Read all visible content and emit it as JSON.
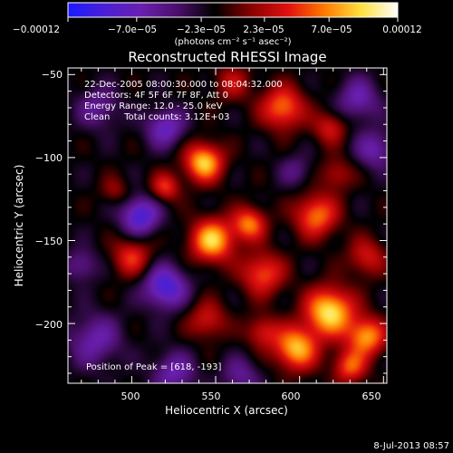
{
  "chart_data": {
    "type": "heatmap",
    "title": "Reconstructed RHESSI Image",
    "xlabel": "Heliocentric X (arcsec)",
    "ylabel": "Heliocentric Y (arcsec)",
    "xlim": [
      462,
      652
    ],
    "ylim": [
      -236,
      -46
    ],
    "x_ticks": [
      500,
      550,
      600,
      650
    ],
    "y_ticks": [
      -50,
      -100,
      -150,
      -200
    ],
    "x_tick_labels": [
      "500",
      "550",
      "600",
      "650"
    ],
    "y_tick_labels": [
      "−50",
      "−100",
      "−150",
      "−200"
    ],
    "colorbar": {
      "range": [
        -0.00012,
        0.00012
      ],
      "tick_values": [
        -0.00012,
        -7e-05,
        -2.3e-05,
        2.3e-05,
        7e-05,
        0.00012
      ],
      "tick_labels": [
        "−0.00012",
        "−7.0e−05",
        "−2.3e−05",
        "2.3e−05",
        "7.0e−05",
        "0.00012"
      ],
      "unit_label": "(photons cm⁻² s⁻¹ asec⁻²)",
      "colors": [
        "#1a1aff",
        "#4b1fd6",
        "#6a1fb0",
        "#4a0f6a",
        "#000000",
        "#8a0000",
        "#e01010",
        "#ff7a00",
        "#ffe040",
        "#ffffff"
      ]
    },
    "annotations": [
      "22-Dec-2005 08:00:30.000 to 08:04:32.000",
      "Detectors: 4F 5F 6F 7F 8F, Att 0",
      "Energy Range: 12.0 - 25.0 keV",
      "Clean     Total counts: 3.12E+03"
    ],
    "peak_label": "Position of Peak = [618, -193]",
    "peak": [
      618,
      -193
    ],
    "sources": [
      {
        "x": 618,
        "y": -193,
        "v": 0.000115,
        "s": 10
      },
      {
        "x": 598,
        "y": -215,
        "v": 0.0001,
        "s": 9
      },
      {
        "x": 640,
        "y": -208,
        "v": 9e-05,
        "s": 8
      },
      {
        "x": 630,
        "y": -226,
        "v": 7e-05,
        "s": 7
      },
      {
        "x": 543,
        "y": -103,
        "v": 0.000105,
        "s": 8
      },
      {
        "x": 520,
        "y": -118,
        "v": 6e-05,
        "s": 6
      },
      {
        "x": 548,
        "y": -150,
        "v": 0.000105,
        "s": 9
      },
      {
        "x": 570,
        "y": -140,
        "v": 8e-05,
        "s": 7
      },
      {
        "x": 500,
        "y": -160,
        "v": 6e-05,
        "s": 8
      },
      {
        "x": 578,
        "y": -170,
        "v": 7e-05,
        "s": 9
      },
      {
        "x": 610,
        "y": -135,
        "v": 8e-05,
        "s": 9
      },
      {
        "x": 590,
        "y": -70,
        "v": 8e-05,
        "s": 9
      },
      {
        "x": 618,
        "y": -82,
        "v": 5e-05,
        "s": 7
      },
      {
        "x": 622,
        "y": -110,
        "v": 4e-05,
        "s": 7
      },
      {
        "x": 560,
        "y": -55,
        "v": 4e-05,
        "s": 8
      },
      {
        "x": 545,
        "y": -198,
        "v": 5e-05,
        "s": 8
      },
      {
        "x": 578,
        "y": -205,
        "v": 5e-05,
        "s": 7
      },
      {
        "x": 640,
        "y": -160,
        "v": 5e-05,
        "s": 8
      },
      {
        "x": 490,
        "y": -120,
        "v": 3e-05,
        "s": 6
      },
      {
        "x": 480,
        "y": -70,
        "v": -4e-05,
        "s": 9
      },
      {
        "x": 520,
        "y": -82,
        "v": -6e-05,
        "s": 8
      },
      {
        "x": 505,
        "y": -135,
        "v": -8e-05,
        "s": 8
      },
      {
        "x": 520,
        "y": -178,
        "v": -8e-05,
        "s": 9
      },
      {
        "x": 478,
        "y": -210,
        "v": -5e-05,
        "s": 11
      },
      {
        "x": 470,
        "y": -165,
        "v": -4e-05,
        "s": 7
      },
      {
        "x": 635,
        "y": -65,
        "v": -5e-05,
        "s": 9
      },
      {
        "x": 645,
        "y": -95,
        "v": -5e-05,
        "s": 8
      },
      {
        "x": 598,
        "y": -108,
        "v": -3e-05,
        "s": 7
      },
      {
        "x": 525,
        "y": -230,
        "v": -5e-05,
        "s": 9
      },
      {
        "x": 565,
        "y": -232,
        "v": -4e-05,
        "s": 8
      }
    ]
  },
  "footer": {
    "date": "8-Jul-2013 08:57"
  }
}
